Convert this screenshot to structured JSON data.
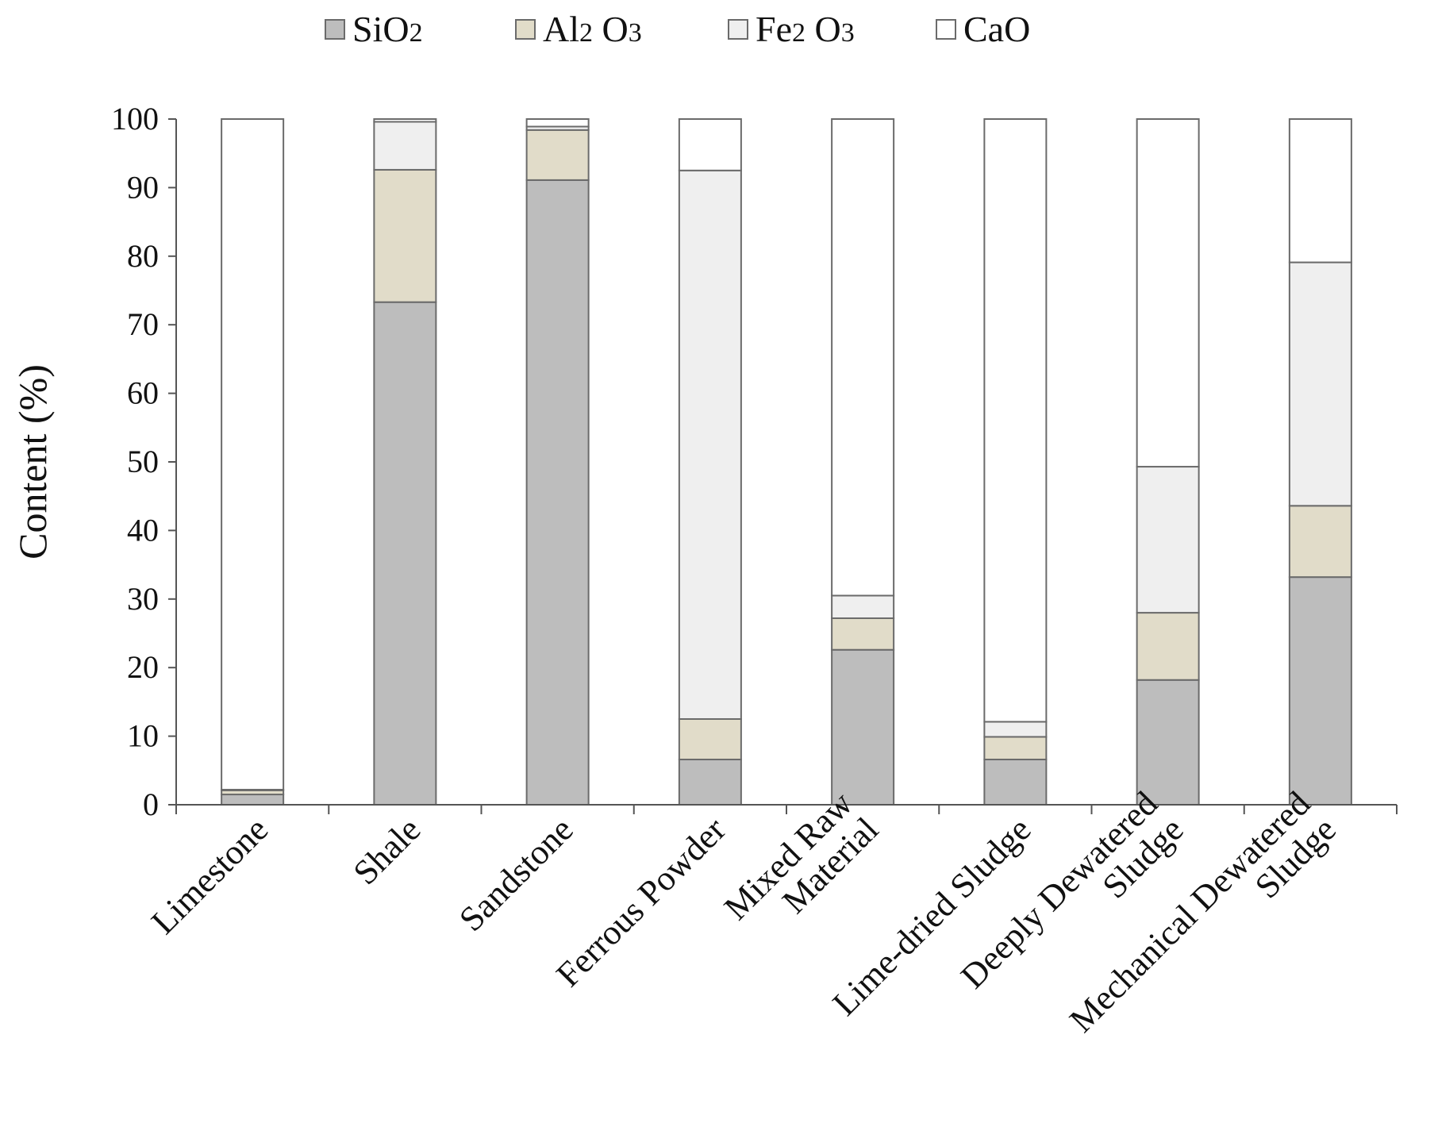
{
  "chart_data": {
    "type": "bar",
    "stacked": true,
    "title": "",
    "xlabel": "",
    "ylabel": "Content (%)",
    "ylim": [
      0,
      100
    ],
    "yticks": [
      0,
      10,
      20,
      30,
      40,
      50,
      60,
      70,
      80,
      90,
      100
    ],
    "grid": false,
    "legend_position": "top",
    "categories": [
      [
        "Limestone"
      ],
      [
        "Shale"
      ],
      [
        "Sandstone"
      ],
      [
        "Ferrous Powder"
      ],
      [
        "Mixed Raw",
        "Material"
      ],
      [
        "Lime-dried Sludge"
      ],
      [
        "Deeply Dewatered",
        "Sludge"
      ],
      [
        "Mechanical  Dewatered",
        "Sludge"
      ]
    ],
    "series": [
      {
        "name": "SiO2",
        "legend_main": "SiO",
        "legend_sub": "2",
        "legend_main2": "",
        "legend_sub2": "",
        "color": "#bdbdbd",
        "values": [
          1.5,
          73.3,
          91.1,
          6.6,
          22.6,
          6.6,
          18.2,
          33.2
        ]
      },
      {
        "name": "Al2O3",
        "legend_main": "Al",
        "legend_sub": "2",
        "legend_main2": " O",
        "legend_sub2": "3",
        "color": "#e1dcc9",
        "values": [
          0.6,
          19.3,
          7.3,
          5.9,
          4.6,
          3.3,
          9.8,
          10.4
        ]
      },
      {
        "name": "Fe2O3",
        "legend_main": "Fe",
        "legend_sub": "2",
        "legend_main2": " O",
        "legend_sub2": "3",
        "color": "#efefef",
        "values": [
          0.1,
          7.0,
          0.5,
          80.0,
          3.3,
          2.2,
          21.3,
          35.5
        ]
      },
      {
        "name": "CaO",
        "legend_main": "CaO",
        "legend_sub": "",
        "legend_main2": "",
        "legend_sub2": "",
        "color": "#ffffff",
        "values": [
          97.8,
          0.4,
          1.1,
          7.5,
          69.5,
          87.9,
          50.7,
          20.9
        ]
      }
    ]
  }
}
